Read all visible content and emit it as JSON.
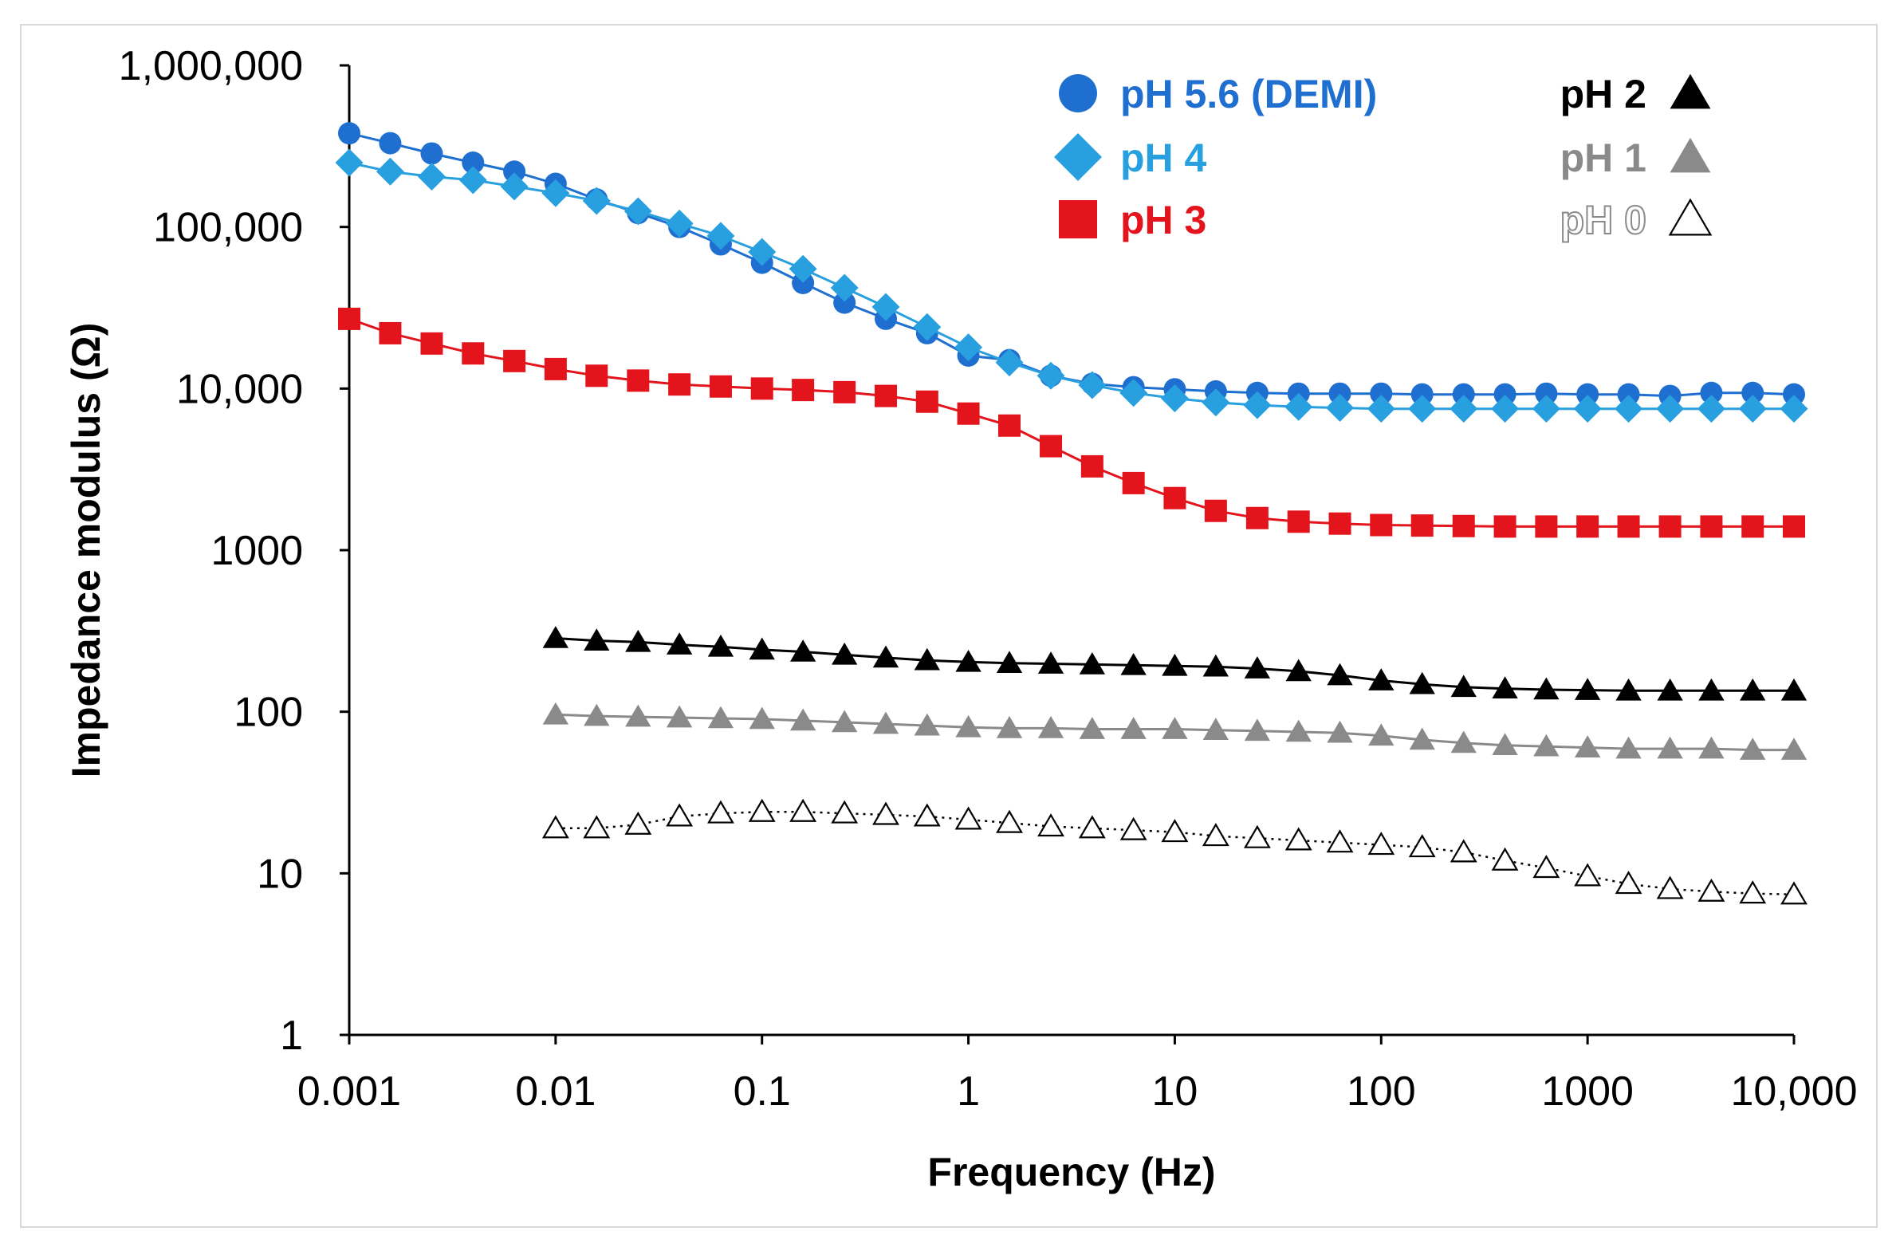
{
  "chart_data": {
    "type": "line",
    "title": "",
    "xlabel": "Frequency (Hz)",
    "ylabel": "Impedance modulus (Ω)",
    "xscale": "log",
    "yscale": "log",
    "xlim": [
      0.001,
      10000
    ],
    "ylim": [
      1,
      1000000
    ],
    "grid": false,
    "x_tick_values": [
      0.001,
      0.01,
      0.1,
      1,
      10,
      100,
      1000,
      10000
    ],
    "x_tick_labels": [
      "0.001",
      "0.01",
      "0.1",
      "1",
      "10",
      "100",
      "1000",
      "10,000"
    ],
    "y_tick_values": [
      1,
      10,
      100,
      1000,
      10000,
      100000,
      1000000
    ],
    "y_tick_labels": [
      "1",
      "10",
      "100",
      "1000",
      "10,000",
      "100,000",
      "1,000,000"
    ],
    "legend": [
      {
        "label": "pH 5.6 (DEMI)",
        "series": "pH 5.6 (DEMI)",
        "side": "left"
      },
      {
        "label": "pH 4",
        "series": "pH 4",
        "side": "left"
      },
      {
        "label": "pH 3",
        "series": "pH 3",
        "side": "left"
      },
      {
        "label": "pH 2",
        "series": "pH 2",
        "side": "right"
      },
      {
        "label": "pH 1",
        "series": "pH 1",
        "side": "right"
      },
      {
        "label": "pH 0",
        "series": "pH 0",
        "side": "right"
      }
    ],
    "series": [
      {
        "name": "pH 5.6 (DEMI)",
        "marker": "circle",
        "color": "#1f6fd1",
        "line": "solid",
        "x": [
          0.001,
          0.00158,
          0.00251,
          0.00398,
          0.00631,
          0.01,
          0.0158,
          0.0251,
          0.0398,
          0.0631,
          0.1,
          0.158,
          0.251,
          0.398,
          0.631,
          1,
          1.58,
          2.51,
          3.98,
          6.31,
          10,
          15.8,
          25.1,
          39.8,
          63.1,
          100,
          158,
          251,
          398,
          631,
          1000,
          1580,
          2510,
          3980,
          6310,
          10000
        ],
        "y": [
          380000,
          330000,
          285000,
          250000,
          220000,
          185000,
          148000,
          122000,
          100000,
          78000,
          60000,
          45000,
          34000,
          27000,
          22000,
          16000,
          15000,
          12000,
          10700,
          10200,
          9900,
          9600,
          9400,
          9300,
          9300,
          9300,
          9200,
          9200,
          9200,
          9300,
          9200,
          9200,
          9000,
          9400,
          9400,
          9200
        ]
      },
      {
        "name": "pH 4",
        "marker": "diamond",
        "color": "#28a0e0",
        "line": "solid",
        "x": [
          0.001,
          0.00158,
          0.00251,
          0.00398,
          0.00631,
          0.01,
          0.0158,
          0.0251,
          0.0398,
          0.0631,
          0.1,
          0.158,
          0.251,
          0.398,
          0.631,
          1,
          1.58,
          2.51,
          3.98,
          6.31,
          10,
          15.8,
          25.1,
          39.8,
          63.1,
          100,
          158,
          251,
          398,
          631,
          1000,
          1580,
          2510,
          3980,
          6310,
          10000
        ],
        "y": [
          250000,
          220000,
          205000,
          195000,
          178000,
          162000,
          145000,
          125000,
          105000,
          88000,
          70000,
          55000,
          42000,
          32000,
          24000,
          18000,
          14500,
          12000,
          10500,
          9400,
          8700,
          8200,
          7900,
          7700,
          7600,
          7500,
          7500,
          7500,
          7500,
          7500,
          7500,
          7500,
          7500,
          7500,
          7500,
          7500
        ]
      },
      {
        "name": "pH 3",
        "marker": "square",
        "color": "#e3141b",
        "line": "solid",
        "x": [
          0.001,
          0.00158,
          0.00251,
          0.00398,
          0.00631,
          0.01,
          0.0158,
          0.0251,
          0.0398,
          0.0631,
          0.1,
          0.158,
          0.251,
          0.398,
          0.631,
          1,
          1.58,
          2.51,
          3.98,
          6.31,
          10,
          15.8,
          25.1,
          39.8,
          63.1,
          100,
          158,
          251,
          398,
          631,
          1000,
          1580,
          2510,
          3980,
          6310,
          10000
        ],
        "y": [
          27000,
          22000,
          19000,
          16500,
          14800,
          13200,
          12000,
          11200,
          10600,
          10300,
          10000,
          9800,
          9500,
          9000,
          8300,
          7000,
          5900,
          4400,
          3300,
          2600,
          2100,
          1750,
          1580,
          1500,
          1460,
          1430,
          1420,
          1410,
          1400,
          1400,
          1400,
          1400,
          1400,
          1400,
          1400,
          1400
        ]
      },
      {
        "name": "pH 2",
        "marker": "triangle",
        "color": "#000000",
        "line": "solid",
        "x": [
          0.01,
          0.0158,
          0.0251,
          0.0398,
          0.0631,
          0.1,
          0.158,
          0.251,
          0.398,
          0.631,
          1,
          1.58,
          2.51,
          3.98,
          6.31,
          10,
          15.8,
          25.1,
          39.8,
          63.1,
          100,
          158,
          251,
          398,
          631,
          1000,
          1580,
          2510,
          3980,
          6310,
          10000
        ],
        "y": [
          285,
          275,
          270,
          260,
          252,
          242,
          235,
          225,
          216,
          208,
          203,
          200,
          198,
          196,
          194,
          192,
          190,
          185,
          178,
          168,
          156,
          148,
          142,
          139,
          137,
          136,
          135,
          135,
          135,
          135,
          135
        ]
      },
      {
        "name": "pH 1",
        "marker": "triangle",
        "color": "#8a8a8a",
        "line": "solid",
        "x": [
          0.01,
          0.0158,
          0.0251,
          0.0398,
          0.0631,
          0.1,
          0.158,
          0.251,
          0.398,
          0.631,
          1,
          1.58,
          2.51,
          3.98,
          6.31,
          10,
          15.8,
          25.1,
          39.8,
          63.1,
          100,
          158,
          251,
          398,
          631,
          1000,
          1580,
          2510,
          3980,
          6310,
          10000
        ],
        "y": [
          96,
          94,
          93,
          92,
          91,
          90,
          88,
          86,
          84,
          82,
          80,
          79,
          79,
          78,
          78,
          78,
          77,
          76,
          75,
          74,
          71,
          67,
          64,
          62,
          61,
          60,
          59,
          59,
          59,
          58,
          58
        ]
      },
      {
        "name": "pH 0",
        "marker": "triangle-open",
        "color": "#000000",
        "line": "dotted",
        "x": [
          0.01,
          0.0158,
          0.0251,
          0.0398,
          0.0631,
          0.1,
          0.158,
          0.251,
          0.398,
          0.631,
          1,
          1.58,
          2.51,
          3.98,
          6.31,
          10,
          15.8,
          25.1,
          39.8,
          63.1,
          100,
          158,
          251,
          398,
          631,
          1000,
          1580,
          2510,
          3980,
          6310,
          10000
        ],
        "y": [
          19,
          19,
          20,
          22.5,
          23.5,
          24,
          24,
          23.5,
          23,
          22.5,
          21.5,
          20.5,
          19.5,
          19,
          18.5,
          18,
          17,
          16.5,
          16,
          15.5,
          15,
          14.5,
          13.5,
          12,
          10.8,
          9.6,
          8.6,
          8.0,
          7.7,
          7.5,
          7.4
        ]
      }
    ]
  }
}
